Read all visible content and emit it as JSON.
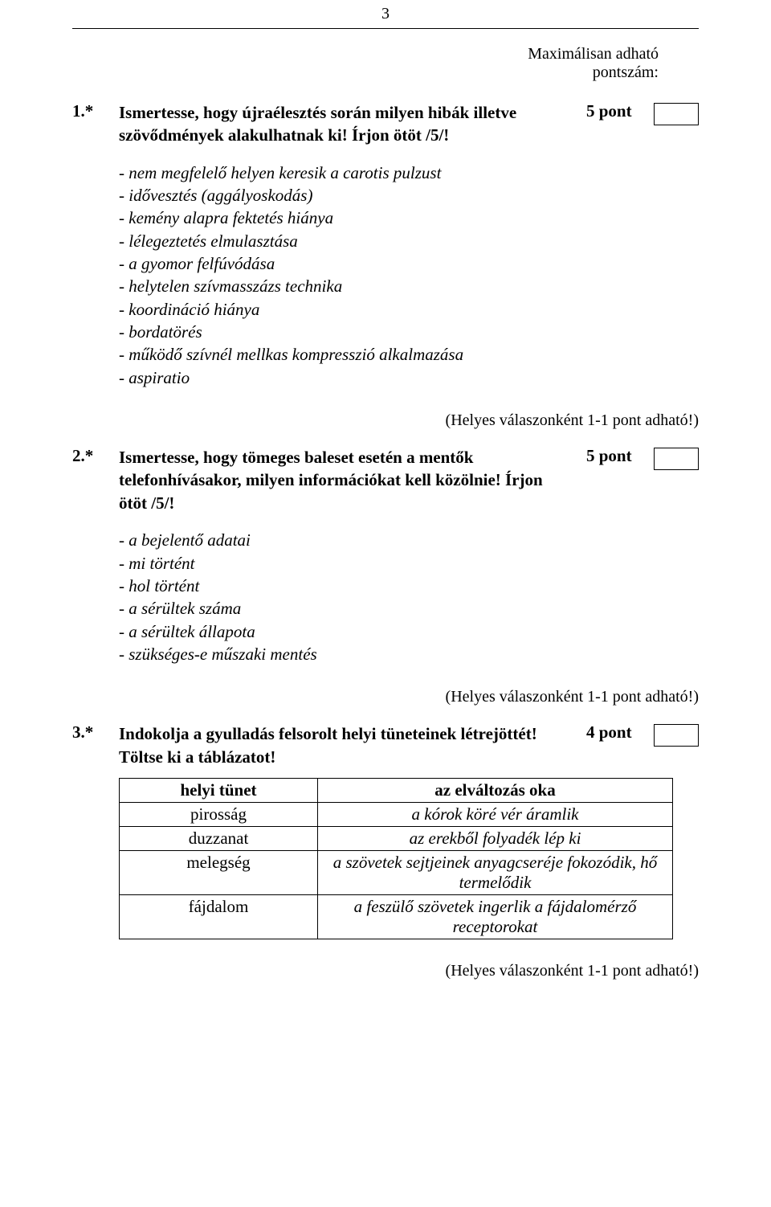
{
  "page_number": "3",
  "max_score_label_line1": "Maximálisan adható",
  "max_score_label_line2": "pontszám:",
  "q1": {
    "num": "1.*",
    "text": "Ismertesse, hogy újraélesztés során milyen hibák illetve szövődmények alakulhatnak ki! Írjon ötöt /5/!",
    "points": "5 pont",
    "answers": [
      "- nem megfelelő helyen keresik a carotis pulzust",
      "- idővesztés (aggályoskodás)",
      "- kemény alapra fektetés hiánya",
      "- lélegeztetés elmulasztása",
      "- a gyomor felfúvódása",
      "- helytelen szívmasszázs technika",
      "- koordináció hiánya",
      "- bordatörés",
      "- működő szívnél mellkas kompresszió alkalmazása",
      "- aspiratio"
    ]
  },
  "note": "(Helyes válaszonként 1-1 pont adható!)",
  "q2": {
    "num": "2.*",
    "text": "Ismertesse, hogy tömeges baleset esetén a mentők telefonhívásakor, milyen információkat kell közölnie! Írjon ötöt /5/!",
    "points": "5 pont",
    "answers": [
      "- a bejelentő adatai",
      "- mi történt",
      "- hol történt",
      "- a sérültek száma",
      "- a sérültek állapota",
      "- szükséges-e műszaki mentés"
    ]
  },
  "q3": {
    "num": "3.*",
    "text": "Indokolja a gyulladás felsorolt helyi tüneteinek létrejöttét!\nTöltse ki a táblázatot!",
    "points": "4 pont",
    "table": {
      "header": [
        "helyi tünet",
        "az elváltozás oka"
      ],
      "rows": [
        [
          "pirosság",
          "a kórok köré vér áramlik"
        ],
        [
          "duzzanat",
          "az erekből folyadék lép ki"
        ],
        [
          "melegség",
          "a szövetek sejtjeinek anyagcseréje fokozódik, hő termelődik"
        ],
        [
          "fájdalom",
          "a feszülő szövetek ingerlik a fájdalomérző receptorokat"
        ]
      ]
    }
  }
}
